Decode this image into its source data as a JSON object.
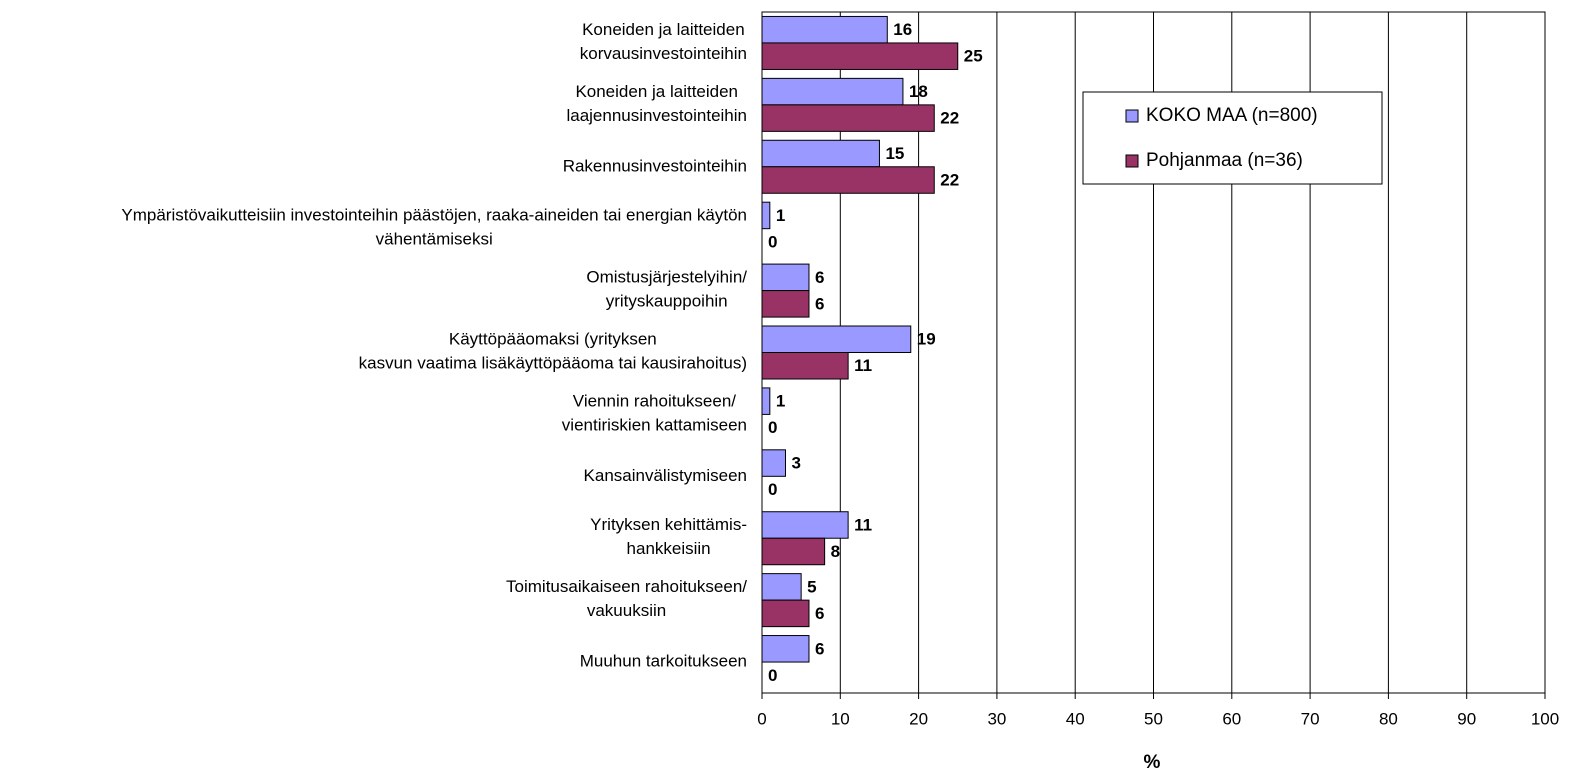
{
  "chart_data": {
    "type": "hbar",
    "categories": [
      "Koneiden ja laitteiden\nkorvausinvestointeihin",
      "Koneiden ja laitteiden\nlaajennusinvestointeihin",
      "Rakennusinvestointeihin",
      "Ympäristövaikutteisiin investointeihin päästöjen, raaka-aineiden tai energian käytön\nvähentämiseksi",
      "Omistusjärjestelyihin/\nyrityskauppoihin",
      "Käyttöpääomaksi (yrityksen\nkasvun vaatima lisäkäyttöpääoma tai kausirahoitus)",
      "Viennin rahoitukseen/\nvientiriskien kattamiseen",
      "Kansainvälistymiseen",
      "Yrityksen kehittämis-\nhankkeisiin",
      "Toimitusaikaiseen rahoitukseen/\nvakuuksiin",
      "Muuhun tarkoitukseen"
    ],
    "series": [
      {
        "name": "KOKO MAA (n=800)",
        "color": "#9999ff",
        "values": [
          16,
          18,
          15,
          1,
          6,
          19,
          1,
          3,
          11,
          5,
          6
        ]
      },
      {
        "name": "Pohjanmaa (n=36)",
        "color": "#993366",
        "values": [
          25,
          22,
          22,
          0,
          6,
          11,
          0,
          0,
          8,
          6,
          0
        ]
      }
    ],
    "x_label": "%",
    "xlim": [
      0,
      100
    ],
    "xticks": [
      0,
      10,
      20,
      30,
      40,
      50,
      60,
      70,
      80,
      90,
      100
    ],
    "grid": true,
    "legend": "top-right"
  }
}
